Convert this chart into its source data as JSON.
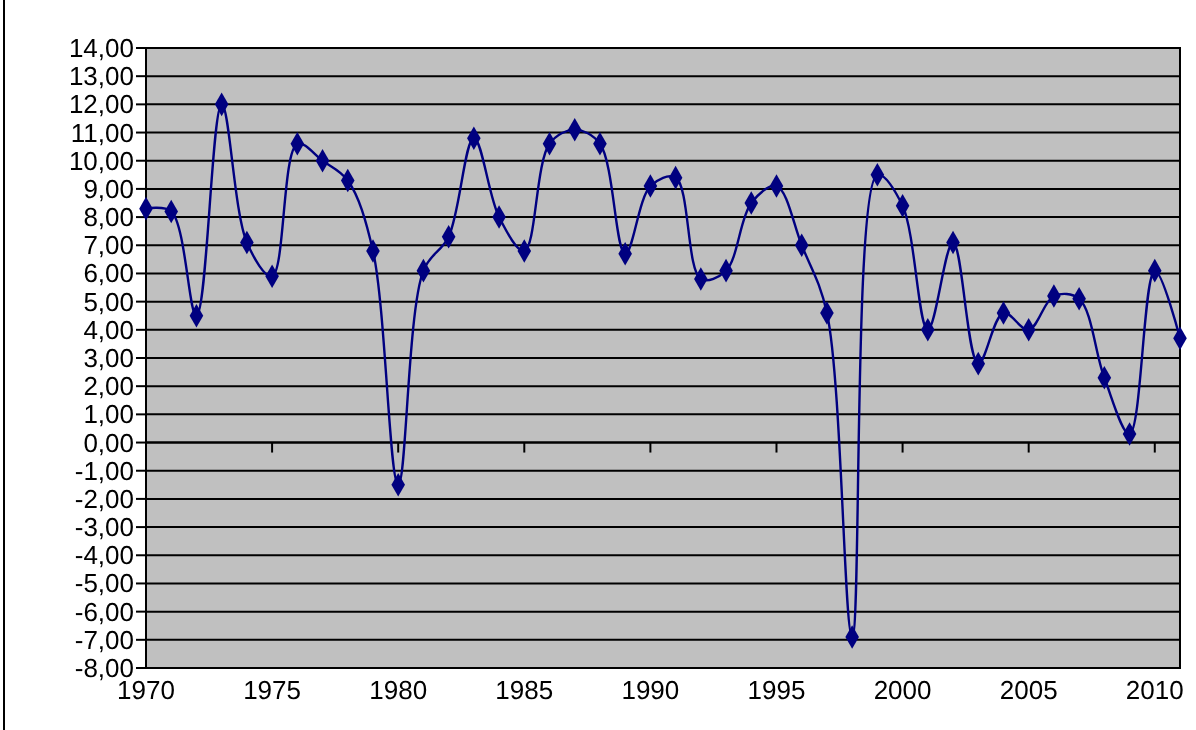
{
  "chart_data": {
    "type": "line",
    "x": [
      1970,
      1971,
      1972,
      1973,
      1974,
      1975,
      1976,
      1977,
      1978,
      1979,
      1980,
      1981,
      1982,
      1983,
      1984,
      1985,
      1986,
      1987,
      1988,
      1989,
      1990,
      1991,
      1992,
      1993,
      1994,
      1995,
      1996,
      1997,
      1998,
      1999,
      2000,
      2001,
      2002,
      2003,
      2004,
      2005,
      2006,
      2007,
      2008,
      2009,
      2010,
      2011
    ],
    "series": [
      {
        "color": "#000080",
        "values": [
          8.3,
          8.2,
          4.5,
          12.0,
          7.1,
          5.9,
          10.6,
          10.0,
          9.3,
          6.8,
          -1.5,
          6.1,
          7.3,
          10.8,
          8.0,
          6.8,
          10.6,
          11.1,
          10.6,
          6.7,
          9.1,
          9.4,
          5.8,
          6.1,
          8.5,
          9.1,
          7.0,
          4.6,
          -6.9,
          9.5,
          8.4,
          4.0,
          7.1,
          2.8,
          4.6,
          4.0,
          5.2,
          5.1,
          2.3,
          0.3,
          6.1,
          3.7
        ]
      }
    ],
    "xlim": [
      1970,
      2011
    ],
    "xticks": [
      1970,
      1975,
      1980,
      1985,
      1990,
      1995,
      2000,
      2005,
      2010
    ],
    "ylim": [
      -8,
      14
    ],
    "yticks": [
      {
        "value": 14,
        "label": "14,00"
      },
      {
        "value": 13,
        "label": "13,00"
      },
      {
        "value": 12,
        "label": "12,00"
      },
      {
        "value": 11,
        "label": "11,00"
      },
      {
        "value": 10,
        "label": "10,00"
      },
      {
        "value": 9,
        "label": "9,00"
      },
      {
        "value": 8,
        "label": "8,00"
      },
      {
        "value": 7,
        "label": "7,00"
      },
      {
        "value": 6,
        "label": "6,00"
      },
      {
        "value": 5,
        "label": "5,00"
      },
      {
        "value": 4,
        "label": "4,00"
      },
      {
        "value": 3,
        "label": "3,00"
      },
      {
        "value": 2,
        "label": "2,00"
      },
      {
        "value": 1,
        "label": "1,00"
      },
      {
        "value": 0,
        "label": "0,00"
      },
      {
        "value": -1,
        "label": "-1,00"
      },
      {
        "value": -2,
        "label": "-2,00"
      },
      {
        "value": -3,
        "label": "-3,00"
      },
      {
        "value": -4,
        "label": "-4,00"
      },
      {
        "value": -5,
        "label": "-5,00"
      },
      {
        "value": -6,
        "label": "-6,00"
      },
      {
        "value": -7,
        "label": "-7,00"
      },
      {
        "value": -8,
        "label": "-8,00"
      }
    ],
    "grid": "y",
    "marker": "diamond",
    "line_style": "solid"
  }
}
